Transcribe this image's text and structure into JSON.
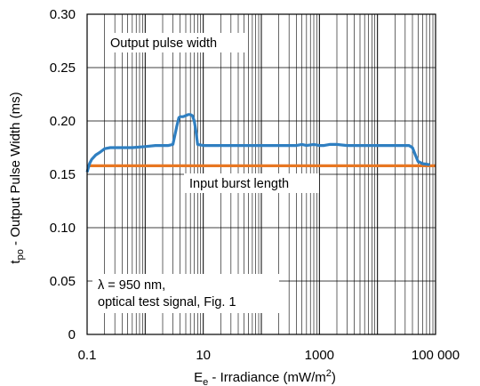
{
  "chart_data": {
    "type": "line",
    "xscale": "log",
    "xlim": [
      0.1,
      100000
    ],
    "ylim": [
      0,
      0.3
    ],
    "grid": true,
    "xticks": [
      {
        "value": 0.1,
        "label": "0.1"
      },
      {
        "value": 10,
        "label": "10"
      },
      {
        "value": 1000,
        "label": "1000"
      },
      {
        "value": 100000,
        "label": "100 000"
      }
    ],
    "yticks": [
      {
        "value": 0,
        "label": "0"
      },
      {
        "value": 0.05,
        "label": "0.05"
      },
      {
        "value": 0.1,
        "label": "0.10"
      },
      {
        "value": 0.15,
        "label": "0.15"
      },
      {
        "value": 0.2,
        "label": "0.20"
      },
      {
        "value": 0.25,
        "label": "0.25"
      },
      {
        "value": 0.3,
        "label": "0.30"
      }
    ],
    "xlabel": {
      "main": "E",
      "sub": "e",
      "rest": " - Irradiance (mW/m",
      "sup": "2",
      "end": ")"
    },
    "ylabel": {
      "main": "t",
      "sub": "po",
      "rest": " - Output Pulse Width (ms)"
    },
    "annotations": {
      "output": "Output pulse width",
      "input": "Input burst length",
      "cond_line1": "λ = 950 nm,",
      "cond_line2": "optical test signal, Fig. 1"
    },
    "series": [
      {
        "color": "#2f7fc1",
        "x": [
          0.1,
          0.11,
          0.12,
          0.14,
          0.17,
          0.2,
          0.25,
          0.3,
          0.4,
          0.6,
          1,
          1.5,
          2,
          2.5,
          3,
          3.5,
          3.8,
          4,
          4.5,
          5,
          5.5,
          6,
          6.5,
          7,
          7.5,
          8,
          10,
          15,
          20,
          30,
          50,
          100,
          200,
          400,
          500,
          600,
          800,
          1000,
          1200,
          1500,
          2000,
          3000,
          5000,
          10000,
          20000,
          30000,
          35000,
          40000,
          45000,
          50000,
          60000,
          80000
        ],
        "y": [
          0.152,
          0.16,
          0.164,
          0.168,
          0.171,
          0.174,
          0.175,
          0.175,
          0.175,
          0.175,
          0.176,
          0.177,
          0.177,
          0.177,
          0.178,
          0.195,
          0.203,
          0.204,
          0.204,
          0.205,
          0.206,
          0.206,
          0.205,
          0.2,
          0.19,
          0.178,
          0.177,
          0.177,
          0.177,
          0.177,
          0.177,
          0.177,
          0.177,
          0.177,
          0.178,
          0.177,
          0.178,
          0.177,
          0.177,
          0.178,
          0.178,
          0.177,
          0.177,
          0.177,
          0.177,
          0.177,
          0.177,
          0.175,
          0.168,
          0.162,
          0.16,
          0.159
        ]
      },
      {
        "color": "#e87722",
        "x": [
          0.1,
          100000
        ],
        "y": [
          0.158,
          0.158
        ]
      }
    ]
  }
}
